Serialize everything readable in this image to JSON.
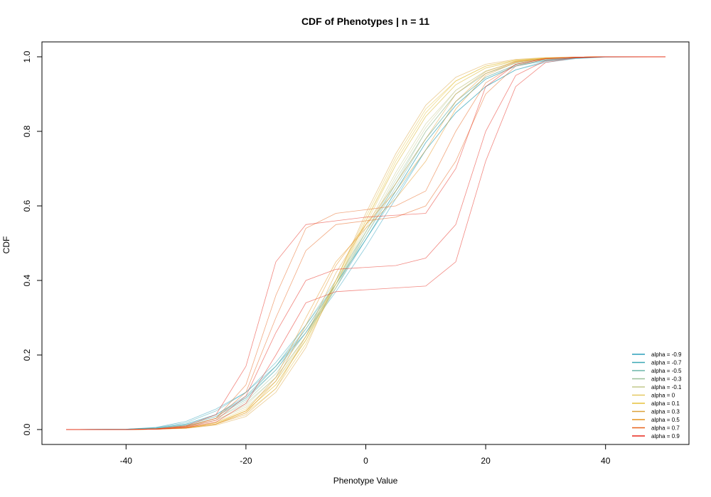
{
  "chart_data": {
    "type": "line",
    "title": "CDF of Phenotypes | n = 11",
    "xlabel": "Phenotype Value",
    "ylabel": "CDF",
    "xlim": [
      -50,
      50
    ],
    "ylim": [
      0,
      1
    ],
    "x_ticks": [
      "-40",
      "-20",
      "0",
      "20",
      "40"
    ],
    "y_ticks": [
      "0.0",
      "0.2",
      "0.4",
      "0.6",
      "0.8",
      "1.0"
    ],
    "grid": false,
    "legend_position": "bottom-right",
    "x": [
      -50,
      -40,
      -35,
      -30,
      -25,
      -20,
      -15,
      -10,
      -5,
      0,
      5,
      10,
      15,
      20,
      25,
      30,
      35,
      40,
      50
    ],
    "series": [
      {
        "name": "alpha = -0.9",
        "color": "#2a9fbc",
        "curves": [
          [
            0,
            0.001,
            0.006,
            0.022,
            0.055,
            0.1,
            0.17,
            0.26,
            0.37,
            0.49,
            0.62,
            0.75,
            0.85,
            0.92,
            0.965,
            0.985,
            0.995,
            0.999,
            1.0
          ],
          [
            0,
            0.001,
            0.004,
            0.015,
            0.04,
            0.085,
            0.16,
            0.26,
            0.38,
            0.51,
            0.64,
            0.77,
            0.87,
            0.94,
            0.975,
            0.99,
            0.997,
            1.0,
            1.0
          ]
        ]
      },
      {
        "name": "alpha = -0.7",
        "color": "#3aa8b4",
        "curves": [
          [
            0,
            0.001,
            0.005,
            0.018,
            0.05,
            0.1,
            0.18,
            0.28,
            0.39,
            0.51,
            0.63,
            0.75,
            0.85,
            0.92,
            0.965,
            0.988,
            0.996,
            1.0,
            1.0
          ],
          [
            0,
            0.001,
            0.004,
            0.014,
            0.04,
            0.09,
            0.17,
            0.27,
            0.39,
            0.51,
            0.64,
            0.77,
            0.87,
            0.94,
            0.975,
            0.99,
            0.997,
            1.0,
            1.0
          ]
        ]
      },
      {
        "name": "alpha = -0.5",
        "color": "#6bb5a8",
        "curves": [
          [
            0,
            0.0,
            0.003,
            0.012,
            0.035,
            0.08,
            0.16,
            0.27,
            0.39,
            0.52,
            0.65,
            0.78,
            0.88,
            0.945,
            0.978,
            0.992,
            0.998,
            1.0,
            1.0
          ],
          [
            0,
            0.0,
            0.003,
            0.012,
            0.035,
            0.085,
            0.17,
            0.28,
            0.4,
            0.53,
            0.66,
            0.78,
            0.88,
            0.945,
            0.978,
            0.992,
            0.998,
            1.0,
            1.0
          ]
        ]
      },
      {
        "name": "alpha = -0.3",
        "color": "#9bbf98",
        "curves": [
          [
            0,
            0.0,
            0.002,
            0.01,
            0.03,
            0.075,
            0.15,
            0.26,
            0.39,
            0.53,
            0.67,
            0.8,
            0.9,
            0.955,
            0.983,
            0.994,
            0.998,
            1.0,
            1.0
          ],
          [
            0,
            0.0,
            0.002,
            0.01,
            0.03,
            0.07,
            0.14,
            0.25,
            0.38,
            0.52,
            0.66,
            0.8,
            0.9,
            0.955,
            0.983,
            0.994,
            0.998,
            1.0,
            1.0
          ]
        ]
      },
      {
        "name": "alpha = -0.1",
        "color": "#c2c88a",
        "curves": [
          [
            0,
            0.0,
            0.002,
            0.008,
            0.025,
            0.065,
            0.14,
            0.25,
            0.39,
            0.54,
            0.69,
            0.82,
            0.91,
            0.962,
            0.986,
            0.995,
            0.999,
            1.0,
            1.0
          ],
          [
            0,
            0.0,
            0.002,
            0.008,
            0.025,
            0.06,
            0.13,
            0.24,
            0.38,
            0.53,
            0.68,
            0.81,
            0.91,
            0.962,
            0.986,
            0.995,
            0.999,
            1.0,
            1.0
          ]
        ]
      },
      {
        "name": "alpha = 0",
        "color": "#e4c860",
        "curves": [
          [
            0,
            0.0,
            0.001,
            0.006,
            0.02,
            0.055,
            0.13,
            0.25,
            0.4,
            0.56,
            0.71,
            0.84,
            0.925,
            0.97,
            0.989,
            0.996,
            0.999,
            1.0,
            1.0
          ],
          [
            0,
            0.0,
            0.001,
            0.005,
            0.018,
            0.05,
            0.12,
            0.24,
            0.39,
            0.55,
            0.71,
            0.84,
            0.925,
            0.97,
            0.989,
            0.996,
            0.999,
            1.0,
            1.0
          ]
        ]
      },
      {
        "name": "alpha = 0.1",
        "color": "#e6c13a",
        "curves": [
          [
            0,
            0.0,
            0.001,
            0.005,
            0.018,
            0.05,
            0.12,
            0.24,
            0.4,
            0.57,
            0.73,
            0.86,
            0.935,
            0.975,
            0.991,
            0.997,
            0.999,
            1.0,
            1.0
          ],
          [
            0,
            0.0,
            0.001,
            0.004,
            0.015,
            0.045,
            0.11,
            0.23,
            0.39,
            0.56,
            0.72,
            0.85,
            0.935,
            0.975,
            0.991,
            0.997,
            0.999,
            1.0,
            1.0
          ]
        ]
      },
      {
        "name": "alpha = 0.3",
        "color": "#dba23a",
        "curves": [
          [
            0,
            0.0,
            0.001,
            0.004,
            0.015,
            0.04,
            0.11,
            0.25,
            0.42,
            0.55,
            0.66,
            0.78,
            0.9,
            0.96,
            0.988,
            0.996,
            0.999,
            1.0,
            1.0
          ],
          [
            0,
            0.0,
            0.001,
            0.003,
            0.012,
            0.035,
            0.1,
            0.22,
            0.4,
            0.58,
            0.74,
            0.87,
            0.945,
            0.98,
            0.993,
            0.998,
            0.999,
            1.0,
            1.0
          ]
        ]
      },
      {
        "name": "alpha = 0.5",
        "color": "#e6921a",
        "curves": [
          [
            0,
            0.0,
            0.001,
            0.004,
            0.015,
            0.05,
            0.14,
            0.3,
            0.45,
            0.54,
            0.62,
            0.72,
            0.86,
            0.95,
            0.985,
            0.996,
            0.999,
            1.0,
            1.0
          ],
          [
            0,
            0.0,
            0.001,
            0.004,
            0.014,
            0.045,
            0.13,
            0.28,
            0.44,
            0.55,
            0.64,
            0.75,
            0.88,
            0.955,
            0.987,
            0.996,
            0.999,
            1.0,
            1.0
          ]
        ]
      },
      {
        "name": "alpha = 0.7",
        "color": "#e8631a",
        "curves": [
          [
            0,
            0.0,
            0.002,
            0.008,
            0.03,
            0.1,
            0.3,
            0.48,
            0.55,
            0.56,
            0.57,
            0.6,
            0.72,
            0.9,
            0.975,
            0.994,
            0.999,
            1.0,
            1.0
          ],
          [
            0,
            0.0,
            0.002,
            0.008,
            0.03,
            0.12,
            0.36,
            0.54,
            0.58,
            0.59,
            0.6,
            0.64,
            0.8,
            0.93,
            0.98,
            0.995,
            0.999,
            1.0,
            1.0
          ]
        ]
      },
      {
        "name": "alpha = 0.9",
        "color": "#e8261a",
        "curves": [
          [
            0,
            0.0,
            0.002,
            0.01,
            0.04,
            0.17,
            0.45,
            0.55,
            0.56,
            0.57,
            0.575,
            0.58,
            0.7,
            0.92,
            0.98,
            0.995,
            0.999,
            1.0,
            1.0
          ],
          [
            0,
            0.0,
            0.001,
            0.006,
            0.025,
            0.09,
            0.26,
            0.4,
            0.43,
            0.435,
            0.44,
            0.46,
            0.55,
            0.8,
            0.95,
            0.99,
            0.998,
            1.0,
            1.0
          ],
          [
            0,
            0.0,
            0.001,
            0.005,
            0.02,
            0.07,
            0.2,
            0.34,
            0.37,
            0.375,
            0.38,
            0.385,
            0.45,
            0.72,
            0.92,
            0.985,
            0.997,
            1.0,
            1.0
          ]
        ]
      }
    ]
  }
}
